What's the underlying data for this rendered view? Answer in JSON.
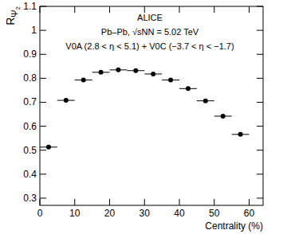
{
  "chart_data": {
    "type": "scatter",
    "x_label": "Centrality (%)",
    "y_label": "RΨ2",
    "annotations": [
      "ALICE",
      "Pb–Pb, √sNN = 5.02 TeV",
      "V0A (2.8 < η < 5.1) + V0C (−3.7 < η < −1.7)"
    ],
    "x": [
      2.5,
      7.5,
      12.5,
      17.5,
      22.5,
      27.5,
      32.5,
      37.5,
      42.5,
      47.5,
      52.5,
      57.5
    ],
    "x_err": [
      2.5,
      2.5,
      2.5,
      2.5,
      2.5,
      2.5,
      2.5,
      2.5,
      2.5,
      2.5,
      2.5,
      2.5
    ],
    "values": [
      0.513,
      0.708,
      0.793,
      0.825,
      0.835,
      0.832,
      0.818,
      0.793,
      0.757,
      0.706,
      0.642,
      0.566
    ],
    "color": "#000000",
    "marker": "circle",
    "xlim": [
      0,
      64
    ],
    "xticks": [
      0,
      10,
      20,
      30,
      40,
      50,
      60
    ],
    "ylim": [
      0.27,
      1.1
    ],
    "yticks": [
      0.3,
      0.4,
      0.5,
      0.6,
      0.7,
      0.8,
      0.9,
      1,
      1.1
    ],
    "grid": false
  }
}
